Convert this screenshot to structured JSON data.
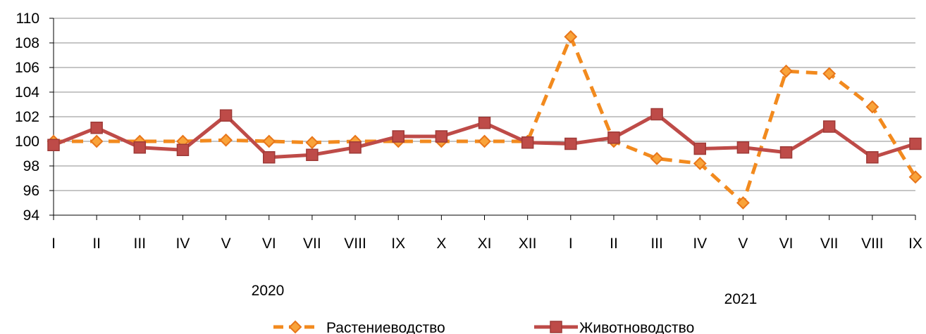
{
  "chart_data": {
    "type": "line",
    "categories": [
      "I",
      "II",
      "III",
      "IV",
      "V",
      "VI",
      "VII",
      "VIII",
      "IX",
      "X",
      "XI",
      "XII",
      "I",
      "II",
      "III",
      "IV",
      "V",
      "VI",
      "VII",
      "VIII",
      "IX"
    ],
    "year_labels": [
      "2020",
      "2021"
    ],
    "ylim": [
      94,
      110
    ],
    "yticks": [
      94,
      96,
      98,
      100,
      102,
      104,
      106,
      108,
      110
    ],
    "grid": true,
    "legend_position": "bottom",
    "series": [
      {
        "name": "Растениеводство",
        "color": "#F28A1E",
        "marker": "diamond",
        "line_style": "dashed",
        "values": [
          100.0,
          100.0,
          100.0,
          100.0,
          100.1,
          100.0,
          99.9,
          100.0,
          100.0,
          100.0,
          100.0,
          100.0,
          108.5,
          100.0,
          98.6,
          98.2,
          95.0,
          105.7,
          105.5,
          102.8,
          97.1
        ]
      },
      {
        "name": "Животноводство",
        "color": "#BE4B48",
        "marker": "square",
        "line_style": "solid",
        "values": [
          99.7,
          101.1,
          99.5,
          99.3,
          102.1,
          98.7,
          98.9,
          99.5,
          100.4,
          100.4,
          101.5,
          99.9,
          99.8,
          100.3,
          102.2,
          99.4,
          99.5,
          99.1,
          101.2,
          98.7,
          99.8
        ]
      }
    ]
  }
}
